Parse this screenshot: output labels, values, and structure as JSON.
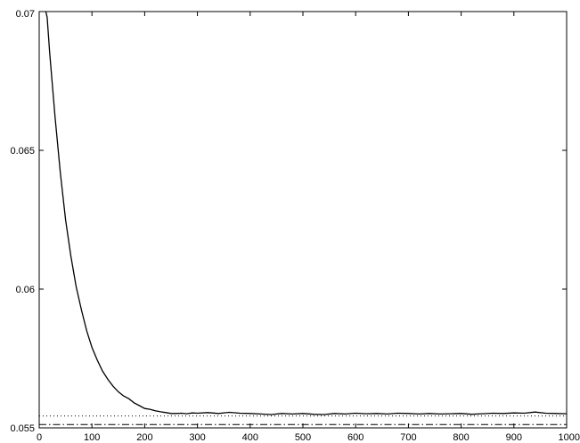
{
  "chart_data": {
    "type": "line",
    "title": "",
    "xlabel": "",
    "ylabel": "",
    "xlim": [
      0,
      1000
    ],
    "ylim": [
      0.055,
      0.07
    ],
    "grid": false,
    "legend": "none",
    "x_ticks": [
      0,
      100,
      200,
      300,
      400,
      500,
      600,
      700,
      800,
      900,
      1000
    ],
    "x_tick_labels": [
      "0",
      "100",
      "200",
      "300",
      "400",
      "500",
      "600",
      "700",
      "800",
      "900",
      "1000"
    ],
    "y_ticks": [
      0.055,
      0.06,
      0.065,
      0.07
    ],
    "y_tick_labels": [
      "0.055",
      "0.06",
      "0.065",
      "0.07"
    ],
    "series": [
      {
        "style": "solid",
        "color": "#000000",
        "x": [
          10,
          15,
          20,
          30,
          40,
          50,
          60,
          70,
          80,
          90,
          100,
          110,
          120,
          130,
          140,
          150,
          160,
          170,
          180,
          190,
          200,
          210,
          220,
          230,
          240,
          250,
          260,
          270,
          280,
          290,
          300,
          320,
          340,
          360,
          380,
          400,
          420,
          440,
          460,
          480,
          500,
          520,
          540,
          560,
          580,
          600,
          620,
          640,
          660,
          680,
          700,
          720,
          740,
          760,
          780,
          800,
          820,
          840,
          860,
          880,
          900,
          920,
          940,
          960,
          980,
          1000
        ],
        "y": [
          0.0702,
          0.0698,
          0.0685,
          0.0662,
          0.0642,
          0.0625,
          0.0612,
          0.0601,
          0.05925,
          0.0585,
          0.0579,
          0.05745,
          0.05705,
          0.05675,
          0.0565,
          0.0563,
          0.05615,
          0.05605,
          0.0559,
          0.0558,
          0.0557,
          0.05567,
          0.05562,
          0.05558,
          0.05555,
          0.05552,
          0.05552,
          0.05553,
          0.05551,
          0.05554,
          0.05553,
          0.05555,
          0.05552,
          0.05556,
          0.05553,
          0.05552,
          0.0555,
          0.05548,
          0.05552,
          0.0555,
          0.05552,
          0.05549,
          0.05548,
          0.05552,
          0.0555,
          0.05553,
          0.05551,
          0.05552,
          0.0555,
          0.05553,
          0.05552,
          0.0555,
          0.05552,
          0.0555,
          0.05551,
          0.05552,
          0.05549,
          0.05551,
          0.05553,
          0.05552,
          0.05554,
          0.05553,
          0.05557,
          0.05553,
          0.05552,
          0.05551
        ]
      },
      {
        "style": "dotted",
        "color": "#000000",
        "x": [
          0,
          1000
        ],
        "y": [
          0.05543,
          0.05543
        ]
      },
      {
        "style": "dashdot",
        "color": "#000000",
        "x": [
          0,
          1000
        ],
        "y": [
          0.05512,
          0.05512
        ]
      }
    ]
  }
}
